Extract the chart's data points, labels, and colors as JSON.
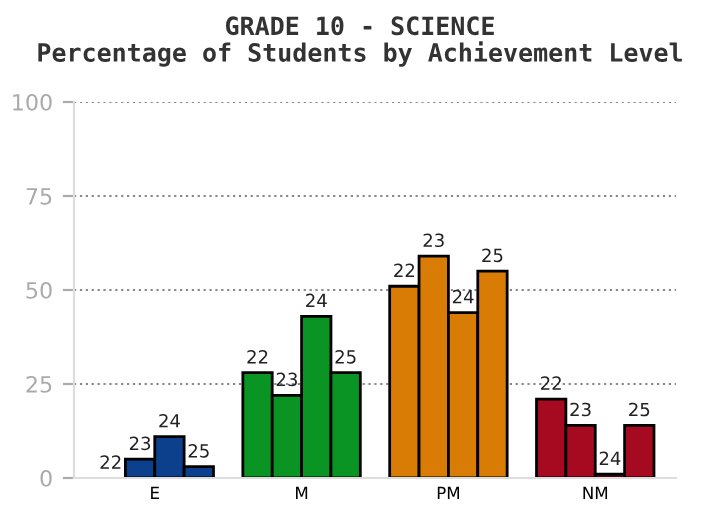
{
  "chart_data": {
    "type": "bar",
    "title": "GRADE 10 - SCIENCE",
    "subtitle": "Percentage of Students by Achievement Level",
    "categories": [
      "E",
      "M",
      "PM",
      "NM"
    ],
    "series": [
      {
        "name": "22",
        "colors": [
          "#0c3f8c",
          "#0a9424",
          "#d97c06",
          "#a50a20"
        ],
        "values": [
          0,
          28,
          51,
          21
        ]
      },
      {
        "name": "23",
        "colors": [
          "#0c3f8c",
          "#0a9424",
          "#d97c06",
          "#a50a20"
        ],
        "values": [
          5,
          22,
          59,
          14
        ]
      },
      {
        "name": "24",
        "colors": [
          "#0c3f8c",
          "#0a9424",
          "#d97c06",
          "#a50a20"
        ],
        "values": [
          11,
          43,
          44,
          1
        ]
      },
      {
        "name": "25",
        "colors": [
          "#0c3f8c",
          "#0a9424",
          "#d97c06",
          "#a50a20"
        ],
        "values": [
          3,
          28,
          55,
          14
        ]
      }
    ],
    "ylim": [
      0,
      100
    ],
    "yticks": [
      0,
      25,
      50,
      75,
      100
    ],
    "grid": "y",
    "legend": false
  }
}
